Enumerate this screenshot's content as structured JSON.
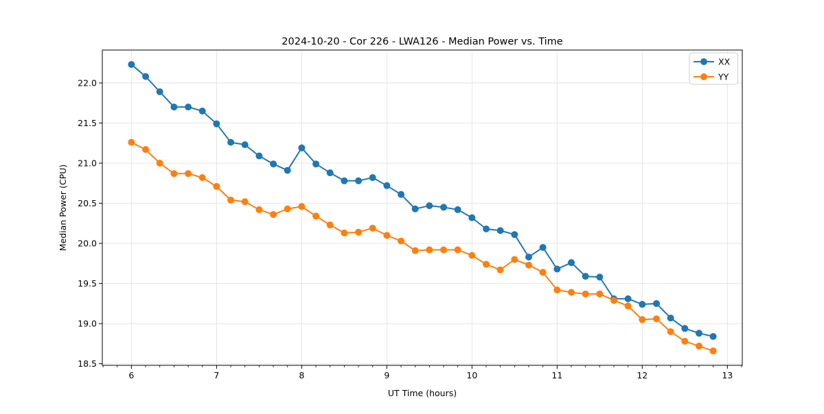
{
  "chart_data": {
    "type": "line",
    "title": "2024-10-20 - Cor 226 - LWA126 - Median Power vs. Time",
    "xlabel": "UT Time (hours)",
    "ylabel": "Median Power (CPU)",
    "xlim": [
      5.658,
      13.175
    ],
    "ylim": [
      18.48,
      22.41
    ],
    "xticks": [
      6,
      7,
      8,
      9,
      10,
      11,
      12,
      13
    ],
    "yticks": [
      18.5,
      19.0,
      19.5,
      20.0,
      20.5,
      21.0,
      21.5,
      22.0
    ],
    "x_minor_divisions": 6,
    "grid": true,
    "grid_color": "#e2e2e2",
    "legend_position": "upper-right",
    "x": [
      6.0,
      6.167,
      6.333,
      6.5,
      6.667,
      6.833,
      7.0,
      7.167,
      7.333,
      7.5,
      7.667,
      7.833,
      8.0,
      8.167,
      8.333,
      8.5,
      8.667,
      8.833,
      9.0,
      9.167,
      9.333,
      9.5,
      9.667,
      9.833,
      10.0,
      10.167,
      10.333,
      10.5,
      10.667,
      10.833,
      11.0,
      11.167,
      11.333,
      11.5,
      11.667,
      11.833,
      12.0,
      12.167,
      12.333,
      12.5,
      12.667,
      12.833
    ],
    "series": [
      {
        "name": "XX",
        "color": "#1f77b4",
        "values": [
          22.23,
          22.08,
          21.89,
          21.7,
          21.7,
          21.65,
          21.49,
          21.26,
          21.23,
          21.09,
          20.99,
          20.91,
          21.19,
          20.99,
          20.88,
          20.78,
          20.78,
          20.82,
          20.72,
          20.61,
          20.43,
          20.47,
          20.45,
          20.42,
          20.32,
          20.18,
          20.16,
          20.11,
          19.83,
          19.95,
          19.68,
          19.76,
          19.59,
          19.58,
          19.31,
          19.31,
          19.24,
          19.25,
          19.07,
          18.94,
          18.88,
          18.84
        ]
      },
      {
        "name": "YY",
        "color": "#ff7f0e",
        "values": [
          21.26,
          21.17,
          21.0,
          20.87,
          20.87,
          20.82,
          20.71,
          20.54,
          20.52,
          20.42,
          20.36,
          20.43,
          20.46,
          20.34,
          20.23,
          20.13,
          20.14,
          20.19,
          20.1,
          20.03,
          19.91,
          19.92,
          19.92,
          19.92,
          19.85,
          19.74,
          19.67,
          19.8,
          19.73,
          19.64,
          19.42,
          19.39,
          19.37,
          19.37,
          19.29,
          19.22,
          19.05,
          19.06,
          18.9,
          18.78,
          18.72,
          18.66
        ]
      }
    ]
  },
  "colors": {
    "frame": "#000000",
    "background": "#ffffff",
    "legend_border": "#cccccc"
  }
}
